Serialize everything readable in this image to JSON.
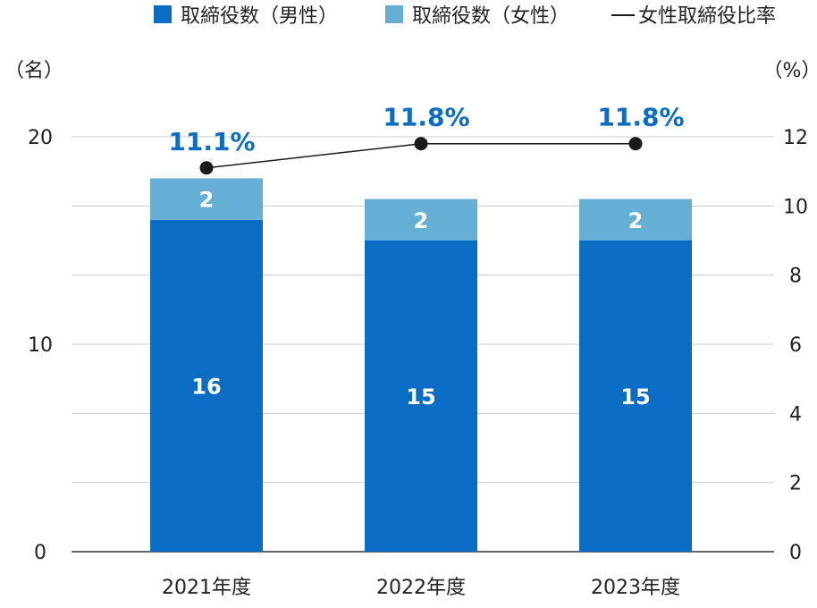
{
  "chart_data": {
    "type": "bar",
    "stacked": true,
    "categories": [
      "2021年度",
      "2022年度",
      "2023年度"
    ],
    "series": [
      {
        "name": "取締役数（男性）",
        "type": "bar",
        "axis": "left",
        "color": "#0a6cc2",
        "values": [
          16,
          15,
          15
        ]
      },
      {
        "name": "取締役数（女性）",
        "type": "bar",
        "axis": "left",
        "color": "#64afd3",
        "values": [
          2,
          2,
          2
        ]
      },
      {
        "name": "女性取締役比率",
        "type": "line",
        "axis": "right",
        "color": "#1a1a1a",
        "values": [
          11.1,
          11.8,
          11.8
        ]
      }
    ],
    "line_labels": [
      "11.1%",
      "11.8%",
      "11.8%"
    ],
    "y_left": {
      "unit": "（名）",
      "ticks": [
        "0",
        "10",
        "20"
      ],
      "ylim": [
        0,
        20
      ]
    },
    "y_right": {
      "unit": "（%）",
      "ticks": [
        "0",
        "2",
        "4",
        "6",
        "8",
        "10",
        "12"
      ],
      "ylim": [
        0,
        12
      ]
    },
    "legend_position": "top",
    "grid": true
  }
}
